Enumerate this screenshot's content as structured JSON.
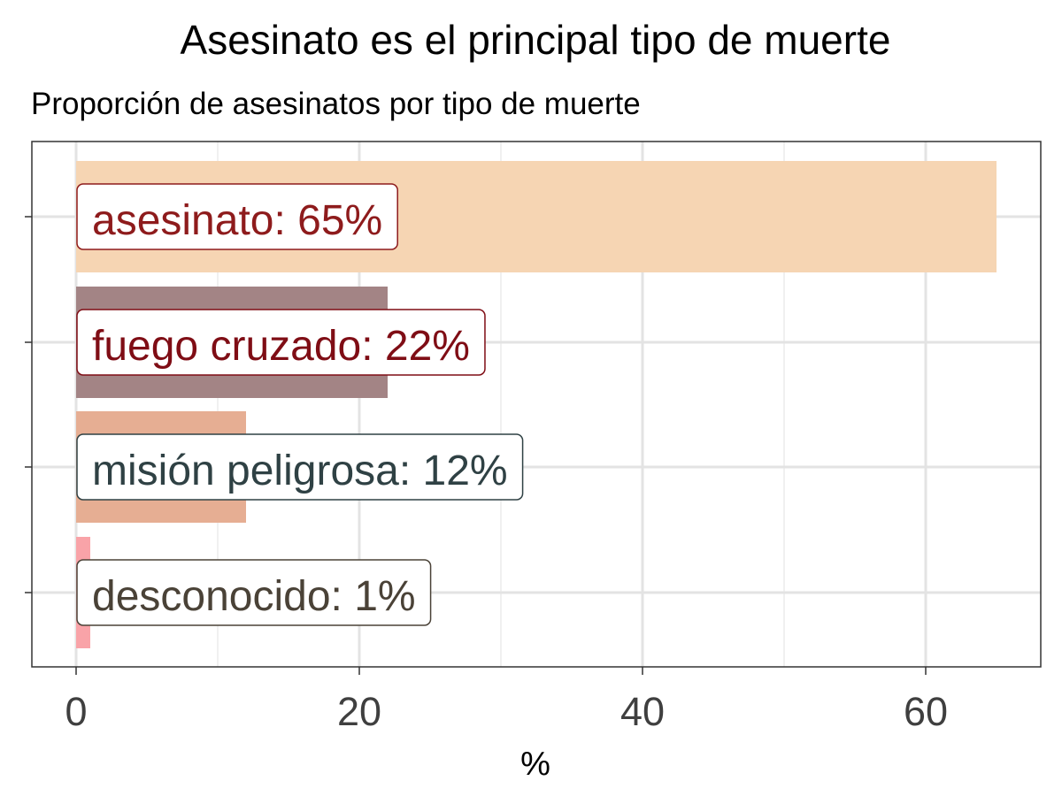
{
  "chart_data": {
    "type": "bar",
    "orientation": "horizontal",
    "title": "Asesinato es el principal tipo de muerte",
    "subtitle": "Proporción de asesinatos por tipo de muerte",
    "xlabel": "%",
    "ylabel": "",
    "xlim": [
      0,
      68
    ],
    "xticks": [
      0,
      20,
      40,
      60
    ],
    "grid": true,
    "categories": [
      "asesinato",
      "fuego cruzado",
      "misión peligrosa",
      "desconocido"
    ],
    "values": [
      65,
      22,
      12,
      1
    ],
    "labels": [
      "asesinato: 65%",
      "fuego cruzado: 22%",
      "misión peligrosa: 12%",
      "desconocido: 1%"
    ],
    "bar_colors": [
      "#f6d5b3",
      "#a38485",
      "#e6ae93",
      "#f9a3a8"
    ],
    "label_colors": [
      "#8e1b1c",
      "#7f0d15",
      "#2f4144",
      "#4a4237"
    ]
  }
}
